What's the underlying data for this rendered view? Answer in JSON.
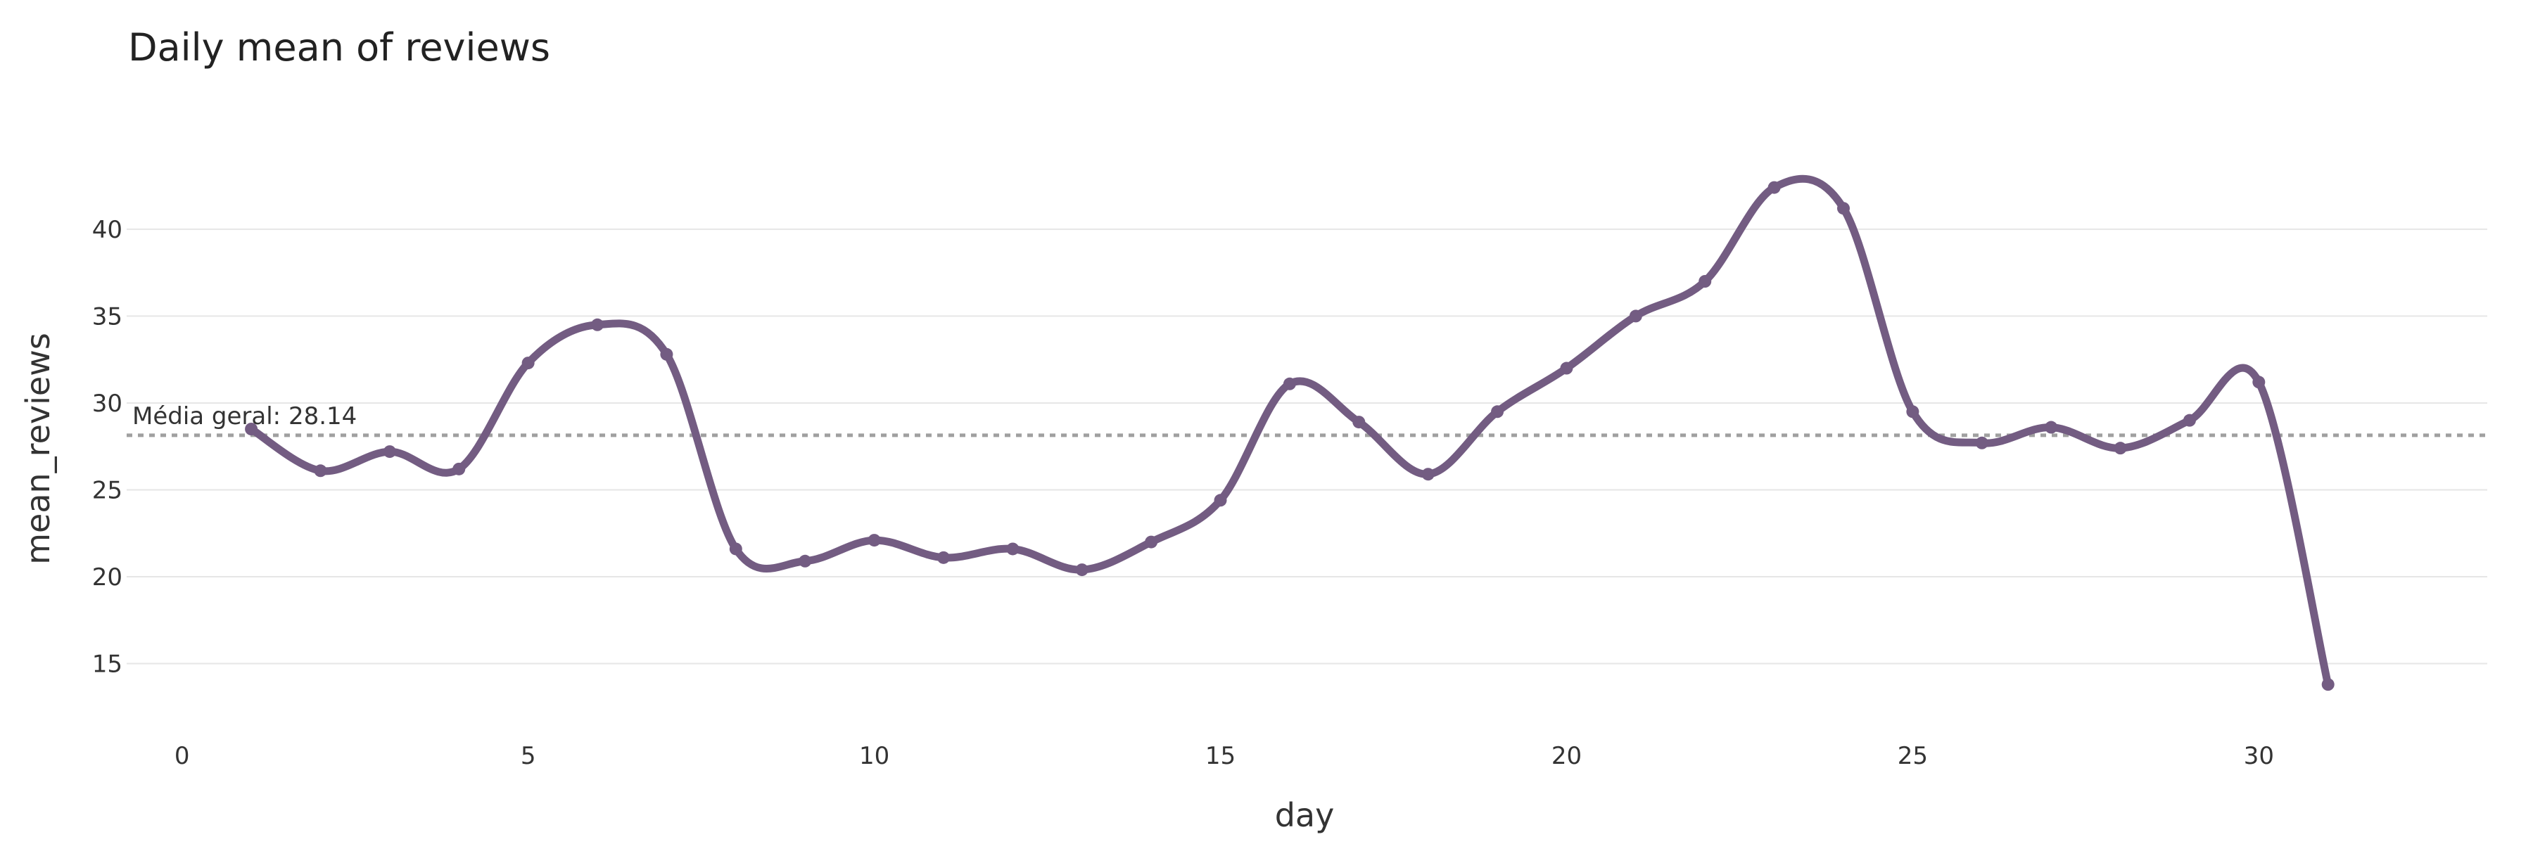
{
  "chart_data": {
    "type": "line",
    "title": "Daily mean of reviews",
    "xlabel": "day",
    "ylabel": "mean_reviews",
    "xlim": [
      -0.8,
      33.3
    ],
    "ylim": [
      11.5,
      45.5
    ],
    "xticks": [
      0,
      5,
      10,
      15,
      20,
      25,
      30
    ],
    "yticks": [
      15,
      20,
      25,
      30,
      35,
      40
    ],
    "grid": true,
    "series": [
      {
        "color": "#735c82",
        "x": [
          1,
          2,
          3,
          4,
          5,
          6,
          7,
          8,
          9,
          10,
          11,
          12,
          13,
          14,
          15,
          16,
          17,
          18,
          19,
          20,
          21,
          22,
          23,
          24,
          25,
          26,
          27,
          28,
          29,
          30,
          31
        ],
        "y": [
          28.5,
          26.1,
          27.2,
          26.2,
          32.3,
          34.5,
          32.8,
          21.6,
          20.9,
          22.1,
          21.1,
          21.6,
          20.4,
          22.0,
          24.4,
          31.1,
          28.9,
          25.9,
          29.5,
          32.0,
          35.0,
          37.0,
          42.4,
          41.2,
          29.5,
          27.7,
          28.6,
          27.4,
          29.0,
          31.2,
          13.8
        ]
      }
    ],
    "reference_line": {
      "y": 28.14,
      "label": "Média geral: 28.14",
      "color": "#a0a0a0"
    }
  }
}
